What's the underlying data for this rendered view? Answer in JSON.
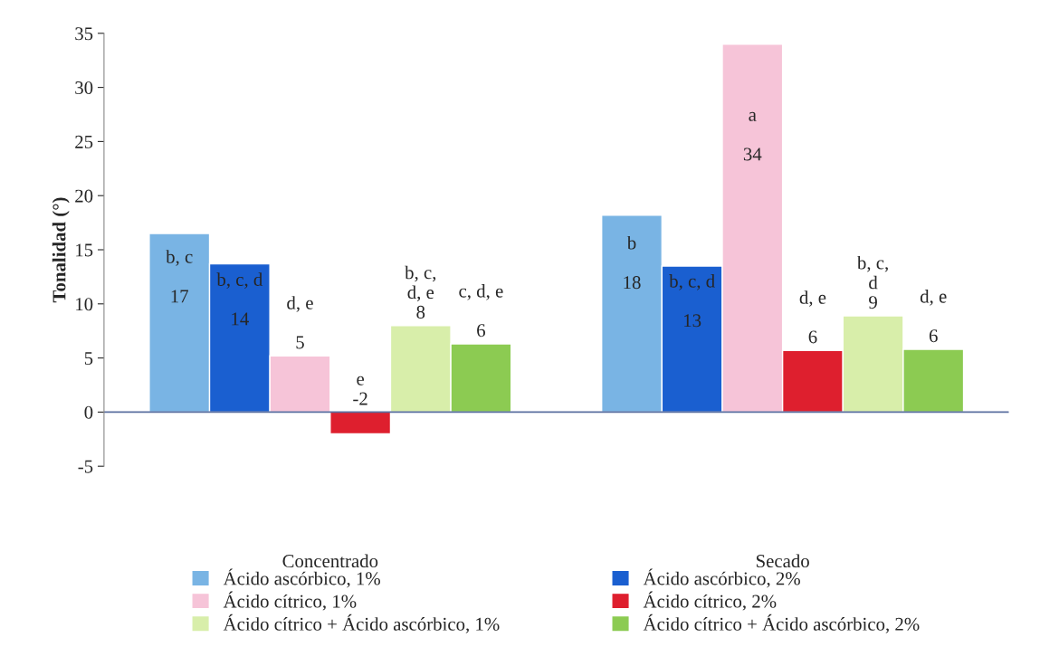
{
  "chart_data": {
    "type": "bar",
    "ylabel": "Tonalidad (°)",
    "categories": [
      "Concentrado",
      "Secado"
    ],
    "ylim": [
      -5,
      35
    ],
    "yticks": [
      -5,
      0,
      5,
      10,
      15,
      20,
      25,
      30,
      35
    ],
    "grid": false,
    "ref_lines": [
      {
        "axis": "y",
        "value": 0,
        "color": "#5a6fa0"
      }
    ],
    "legend": "bottom",
    "series": [
      {
        "name": "Ácido ascórbico, 1%",
        "color": "#79b4e4",
        "values": [
          16.5,
          18.2
        ],
        "value_labels": [
          "b, c\n\n17",
          "b\n\n18"
        ]
      },
      {
        "name": "Ácido ascórbico, 2%",
        "color": "#1a5fd0",
        "values": [
          13.7,
          13.5
        ],
        "value_labels": [
          "b, c, d\n\n14",
          "b, c, d\n\n13"
        ]
      },
      {
        "name": "Ácido cítrico, 1%",
        "color": "#f6c4d8",
        "values": [
          5.2,
          34.0
        ],
        "value_labels": [
          "d, e\n\n5",
          "a\n\n34"
        ]
      },
      {
        "name": "Ácido cítrico, 2%",
        "color": "#de1f2e",
        "values": [
          -2.0,
          5.7
        ],
        "value_labels": [
          "e\n-2",
          "d, e\n\n6"
        ]
      },
      {
        "name": "Ácido cítrico + Ácido ascórbico, 1%",
        "color": "#d8eeaa",
        "values": [
          8.0,
          8.9
        ],
        "value_labels": [
          "b, c,\nd, e\n8",
          "b, c,\nd\n9"
        ]
      },
      {
        "name": "Ácido cítrico + Ácido ascórbico, 2%",
        "color": "#8ccb52",
        "values": [
          6.3,
          5.8
        ],
        "value_labels": [
          "c, d, e\n\n6",
          "d, e\n\n6"
        ]
      }
    ]
  }
}
